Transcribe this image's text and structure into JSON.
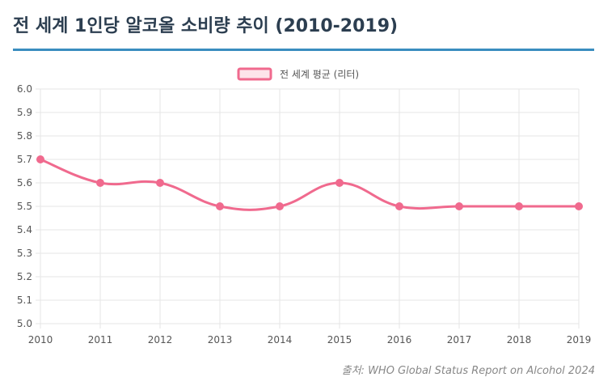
{
  "page": {
    "title": "전 세계 1인당 알코올 소비량 추이 (2010-2019)",
    "source": "출처: WHO Global Status Report on Alcohol 2024"
  },
  "colors": {
    "title_text": "#2c3e50",
    "title_rule": "#3a8dbf",
    "series_line": "#f06a8e",
    "series_fill": "#fde4ea",
    "grid": "#e5e5e5",
    "axis_text": "#555555",
    "source_text": "#888888"
  },
  "chart_data": {
    "type": "line",
    "title": "",
    "xlabel": "",
    "ylabel": "",
    "categories": [
      "2010",
      "2011",
      "2012",
      "2013",
      "2014",
      "2015",
      "2016",
      "2017",
      "2018",
      "2019"
    ],
    "series": [
      {
        "name": "전 세계 평균 (리터)",
        "values": [
          5.7,
          5.6,
          5.6,
          5.5,
          5.5,
          5.6,
          5.5,
          5.5,
          5.5,
          5.5
        ]
      }
    ],
    "ylim": [
      5.0,
      6.0
    ],
    "yticks": [
      "5.0",
      "5.1",
      "5.2",
      "5.3",
      "5.4",
      "5.5",
      "5.6",
      "5.7",
      "5.8",
      "5.9",
      "6.0"
    ],
    "grid": true,
    "legend_position": "top-center",
    "smooth": true
  }
}
